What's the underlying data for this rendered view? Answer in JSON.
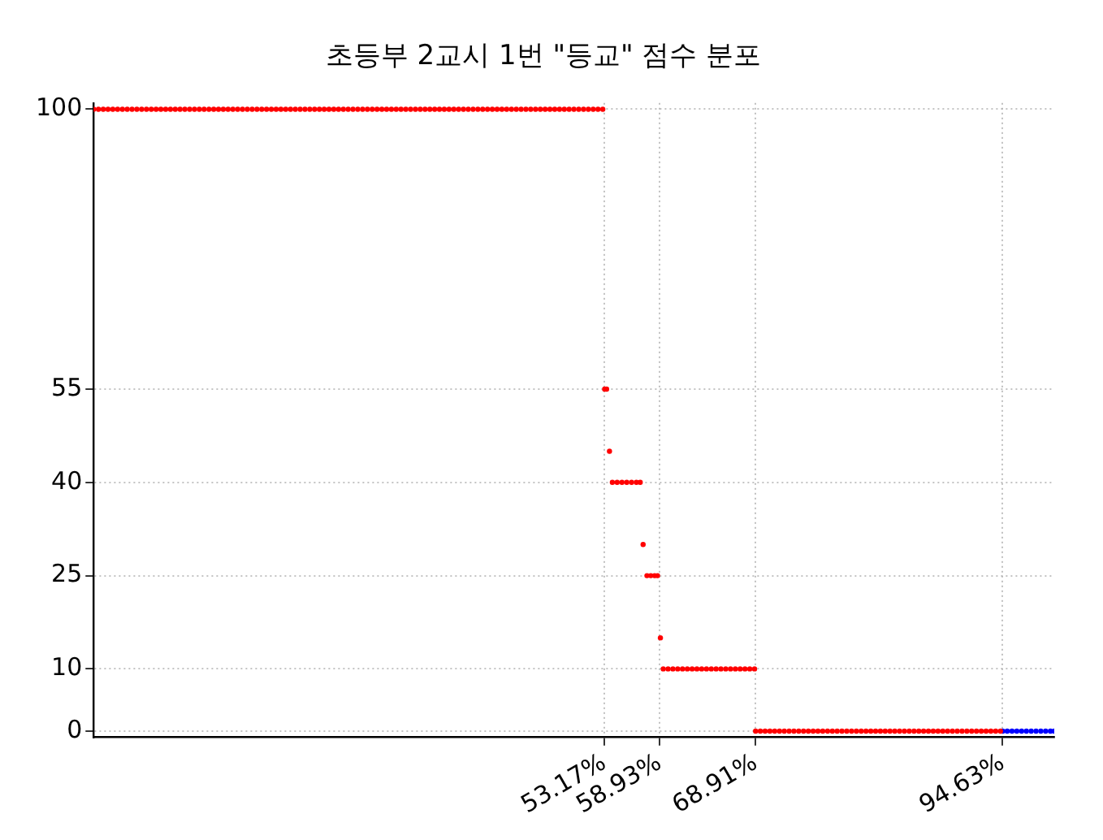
{
  "chart_data": {
    "type": "scatter",
    "title": "초등부 2교시 1번 \"등교\" 점수 분포",
    "xlim": [
      0,
      100
    ],
    "ylim": [
      -1,
      101
    ],
    "xticks": [
      {
        "value": 53.17,
        "label": "53.17%"
      },
      {
        "value": 58.93,
        "label": "58.93%"
      },
      {
        "value": 68.91,
        "label": "68.91%"
      },
      {
        "value": 94.63,
        "label": "94.63%"
      }
    ],
    "yticks": [
      0,
      10,
      25,
      40,
      55,
      100
    ],
    "grid": true,
    "legend": false,
    "marker": "circle",
    "tick_labels": "xy",
    "series": [
      {
        "color": "#ff0000",
        "x": [
          0,
          0.5,
          1,
          1.5,
          2,
          2.5,
          3,
          3.5,
          4,
          4.5,
          5,
          5.5,
          6,
          6.5,
          7,
          7.5,
          8,
          8.5,
          9,
          9.5,
          10,
          10.5,
          11,
          11.5,
          12,
          12.5,
          13,
          13.5,
          14,
          14.5,
          15,
          15.5,
          16,
          16.5,
          17,
          17.5,
          18,
          18.5,
          19,
          19.5,
          20,
          20.5,
          21,
          21.5,
          22,
          22.5,
          23,
          23.5,
          24,
          24.5,
          25,
          25.5,
          26,
          26.5,
          27,
          27.5,
          28,
          28.5,
          29,
          29.5,
          30,
          30.5,
          31,
          31.5,
          32,
          32.5,
          33,
          33.5,
          34,
          34.5,
          35,
          35.5,
          36,
          36.5,
          37,
          37.5,
          38,
          38.5,
          39,
          39.5,
          40,
          40.5,
          41,
          41.5,
          42,
          42.5,
          43,
          43.5,
          44,
          44.5,
          45,
          45.5,
          46,
          46.5,
          47,
          47.5,
          48,
          48.5,
          49,
          49.5,
          50,
          50.5,
          51,
          51.5,
          52,
          52.5,
          53,
          53.2,
          53.4,
          53.7,
          54,
          54.5,
          55,
          55.5,
          56,
          56.5,
          56.9,
          57.2,
          57.6,
          58,
          58.4,
          58.7,
          59,
          59.3,
          59.8,
          60.3,
          60.8,
          61.3,
          61.8,
          62.3,
          62.8,
          63.3,
          63.8,
          64.3,
          64.8,
          65.3,
          65.8,
          66.3,
          66.8,
          67.3,
          67.8,
          68.3,
          68.8,
          68.91,
          69.4,
          69.9,
          70.4,
          70.9,
          71.4,
          71.9,
          72.4,
          72.9,
          73.4,
          73.9,
          74.4,
          74.9,
          75.4,
          75.9,
          76.4,
          76.9,
          77.4,
          77.9,
          78.4,
          78.9,
          79.4,
          79.9,
          80.4,
          80.9,
          81.4,
          81.9,
          82.4,
          82.9,
          83.4,
          83.9,
          84.4,
          84.9,
          85.4,
          85.9,
          86.4,
          86.9,
          87.4,
          87.9,
          88.4,
          88.9,
          89.4,
          89.9,
          90.4,
          90.9,
          91.4,
          91.9,
          92.4,
          92.9,
          93.4,
          93.9,
          94.4
        ],
        "values": [
          100,
          100,
          100,
          100,
          100,
          100,
          100,
          100,
          100,
          100,
          100,
          100,
          100,
          100,
          100,
          100,
          100,
          100,
          100,
          100,
          100,
          100,
          100,
          100,
          100,
          100,
          100,
          100,
          100,
          100,
          100,
          100,
          100,
          100,
          100,
          100,
          100,
          100,
          100,
          100,
          100,
          100,
          100,
          100,
          100,
          100,
          100,
          100,
          100,
          100,
          100,
          100,
          100,
          100,
          100,
          100,
          100,
          100,
          100,
          100,
          100,
          100,
          100,
          100,
          100,
          100,
          100,
          100,
          100,
          100,
          100,
          100,
          100,
          100,
          100,
          100,
          100,
          100,
          100,
          100,
          100,
          100,
          100,
          100,
          100,
          100,
          100,
          100,
          100,
          100,
          100,
          100,
          100,
          100,
          100,
          100,
          100,
          100,
          100,
          100,
          100,
          100,
          100,
          100,
          100,
          100,
          100,
          55,
          55,
          45,
          40,
          40,
          40,
          40,
          40,
          40,
          40,
          30,
          25,
          25,
          25,
          25,
          15,
          10,
          10,
          10,
          10,
          10,
          10,
          10,
          10,
          10,
          10,
          10,
          10,
          10,
          10,
          10,
          10,
          10,
          10,
          10,
          10,
          0,
          0,
          0,
          0,
          0,
          0,
          0,
          0,
          0,
          0,
          0,
          0,
          0,
          0,
          0,
          0,
          0,
          0,
          0,
          0,
          0,
          0,
          0,
          0,
          0,
          0,
          0,
          0,
          0,
          0,
          0,
          0,
          0,
          0,
          0,
          0,
          0,
          0,
          0,
          0,
          0,
          0,
          0,
          0,
          0,
          0,
          0,
          0,
          0,
          0,
          0,
          0
        ]
      },
      {
        "color": "#0000ff",
        "x": [
          94.63,
          95.1,
          95.6,
          96.1,
          96.6,
          97.1,
          97.6,
          98.1,
          98.6,
          99.1,
          99.6,
          100
        ],
        "values": [
          0,
          0,
          0,
          0,
          0,
          0,
          0,
          0,
          0,
          0,
          0,
          0
        ]
      }
    ]
  }
}
